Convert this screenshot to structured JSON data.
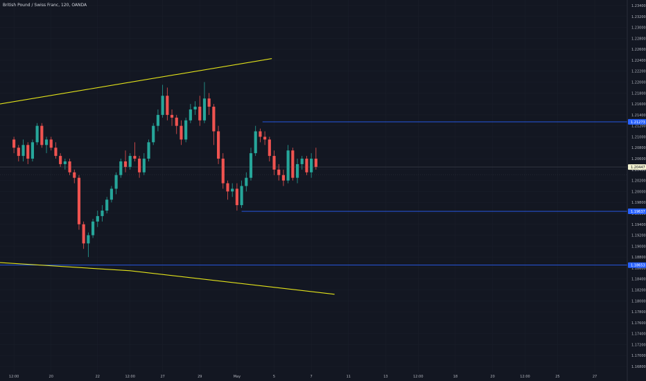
{
  "header": {
    "title": "British Pound / Swiss Franc, 120, OANDA"
  },
  "colors": {
    "background": "#131722",
    "up_candle": "#26a69a",
    "down_candle": "#ef5350",
    "trendline": "#e5e51a",
    "level_line": "#2962ff",
    "current_price_line": "#363a45",
    "current_price_tag": "#f2f2d0",
    "axis_text": "#b2b5be"
  },
  "chart_data": {
    "type": "candlestick",
    "title": "British Pound / Swiss Franc, 120, OANDA",
    "ylim": [
      1.166,
      1.235
    ],
    "y_ticks": [
      "1.23400",
      "1.23200",
      "1.23000",
      "1.22800",
      "1.22600",
      "1.22400",
      "1.22200",
      "1.22000",
      "1.21800",
      "1.21600",
      "1.21400",
      "1.21200",
      "1.21000",
      "1.20800",
      "1.20600",
      "1.20400",
      "1.20200",
      "1.20000",
      "1.19800",
      "1.19600",
      "1.19400",
      "1.19200",
      "1.19000",
      "1.18800",
      "1.18600",
      "1.18400",
      "1.18200",
      "1.18000",
      "1.17800",
      "1.17600",
      "1.17400",
      "1.17200",
      "1.17000",
      "1.16800"
    ],
    "x_ticks": [
      "12:00",
      "20",
      "22",
      "12:00",
      "27",
      "29",
      "May",
      "5",
      "7",
      "11",
      "13",
      "12:00",
      "18",
      "20",
      "12:00",
      "25",
      "27"
    ],
    "x_tick_positions": [
      0.0,
      8.0,
      18.0,
      25.0,
      32.0,
      40.0,
      48.0,
      56.0,
      64.0,
      72.0,
      80.0,
      87.0,
      95.0,
      103.0,
      110.0,
      117.0,
      125.0
    ],
    "x_range": [
      -3,
      132
    ],
    "candles": [
      [
        1.2095,
        1.21,
        1.207,
        1.208
      ],
      [
        1.208,
        1.2085,
        1.2055,
        1.2065
      ],
      [
        1.2065,
        1.2095,
        1.2055,
        1.2085
      ],
      [
        1.2085,
        1.209,
        1.205,
        1.206
      ],
      [
        1.206,
        1.2095,
        1.2055,
        1.209
      ],
      [
        1.209,
        1.2125,
        1.2085,
        1.212
      ],
      [
        1.212,
        1.2125,
        1.208,
        1.2085
      ],
      [
        1.2085,
        1.21,
        1.207,
        1.2095
      ],
      [
        1.2095,
        1.21,
        1.2075,
        1.208
      ],
      [
        1.208,
        1.209,
        1.206,
        1.2065
      ],
      [
        1.2065,
        1.207,
        1.2045,
        1.205
      ],
      [
        1.205,
        1.206,
        1.204,
        1.2055
      ],
      [
        1.2055,
        1.206,
        1.203,
        1.2035
      ],
      [
        1.2035,
        1.204,
        1.2015,
        1.2025
      ],
      [
        1.2025,
        1.203,
        1.193,
        1.194
      ],
      [
        1.194,
        1.1945,
        1.1895,
        1.1905
      ],
      [
        1.1905,
        1.1925,
        1.188,
        1.192
      ],
      [
        1.192,
        1.195,
        1.1915,
        1.1945
      ],
      [
        1.1945,
        1.1965,
        1.1935,
        1.1955
      ],
      [
        1.1955,
        1.1975,
        1.1945,
        1.1965
      ],
      [
        1.1965,
        1.199,
        1.196,
        1.1985
      ],
      [
        1.1985,
        1.201,
        1.198,
        1.2005
      ],
      [
        1.2005,
        1.2035,
        1.1995,
        1.203
      ],
      [
        1.203,
        1.206,
        1.2025,
        1.2055
      ],
      [
        1.2055,
        1.2075,
        1.2035,
        1.2045
      ],
      [
        1.2045,
        1.207,
        1.204,
        1.2065
      ],
      [
        1.2065,
        1.209,
        1.2055,
        1.206
      ],
      [
        1.206,
        1.2065,
        1.2025,
        1.2035
      ],
      [
        1.2035,
        1.207,
        1.203,
        1.206
      ],
      [
        1.206,
        1.2095,
        1.2055,
        1.209
      ],
      [
        1.209,
        1.2125,
        1.2085,
        1.212
      ],
      [
        1.212,
        1.215,
        1.211,
        1.214
      ],
      [
        1.214,
        1.2195,
        1.2135,
        1.2175
      ],
      [
        1.2175,
        1.219,
        1.213,
        1.214
      ],
      [
        1.214,
        1.215,
        1.212,
        1.2135
      ],
      [
        1.2135,
        1.214,
        1.2105,
        1.212
      ],
      [
        1.212,
        1.213,
        1.2085,
        1.2095
      ],
      [
        1.2095,
        1.2135,
        1.209,
        1.213
      ],
      [
        1.213,
        1.216,
        1.2125,
        1.215
      ],
      [
        1.215,
        1.2165,
        1.214,
        1.2155
      ],
      [
        1.2155,
        1.2175,
        1.212,
        1.213
      ],
      [
        1.213,
        1.22,
        1.2125,
        1.217
      ],
      [
        1.217,
        1.218,
        1.214,
        1.2155
      ],
      [
        1.2155,
        1.216,
        1.2085,
        1.211
      ],
      [
        1.211,
        1.212,
        1.205,
        1.206
      ],
      [
        1.206,
        1.207,
        1.2005,
        1.2015
      ],
      [
        1.2015,
        1.202,
        1.1985,
        1.2
      ],
      [
        1.2,
        1.2015,
        1.199,
        1.2005
      ],
      [
        1.2005,
        1.2015,
        1.1965,
        1.1975
      ],
      [
        1.1975,
        1.202,
        1.197,
        1.201
      ],
      [
        1.201,
        1.2035,
        1.2,
        1.2025
      ],
      [
        1.2025,
        1.208,
        1.202,
        1.207
      ],
      [
        1.207,
        1.212,
        1.2065,
        1.211
      ],
      [
        1.211,
        1.2115,
        1.209,
        1.21
      ],
      [
        1.21,
        1.211,
        1.2085,
        1.2095
      ],
      [
        1.2095,
        1.21,
        1.2055,
        1.2065
      ],
      [
        1.2065,
        1.2075,
        1.203,
        1.204
      ],
      [
        1.204,
        1.205,
        1.202,
        1.203
      ],
      [
        1.203,
        1.204,
        1.201,
        1.202
      ],
      [
        1.202,
        1.2085,
        1.2015,
        1.2075
      ],
      [
        1.2075,
        1.208,
        1.202,
        1.2025
      ],
      [
        1.2025,
        1.206,
        1.2015,
        1.205
      ],
      [
        1.205,
        1.2065,
        1.204,
        1.206
      ],
      [
        1.206,
        1.2065,
        1.203,
        1.2035
      ],
      [
        1.2035,
        1.207,
        1.2025,
        1.206
      ],
      [
        1.206,
        1.208,
        1.204,
        1.2045
      ]
    ]
  },
  "drawings": {
    "trendlines": [
      {
        "name": "upper",
        "points": [
          [
            -3,
            1.216
          ],
          [
            55.5,
            1.2243
          ]
        ]
      },
      {
        "name": "lower",
        "points": [
          [
            -3,
            1.187
          ],
          [
            25,
            1.1855
          ],
          [
            69,
            1.1812
          ]
        ]
      }
    ],
    "levels": [
      {
        "price": 1.21273,
        "x_start": 53.5,
        "label": "1.21273"
      },
      {
        "price": 1.19637,
        "x_start": 49,
        "label": "1.19637"
      },
      {
        "price": 1.18653,
        "x_start": -3,
        "label": "1.18653"
      }
    ],
    "current_price": {
      "price": 1.20447,
      "label": "1.20447"
    }
  }
}
